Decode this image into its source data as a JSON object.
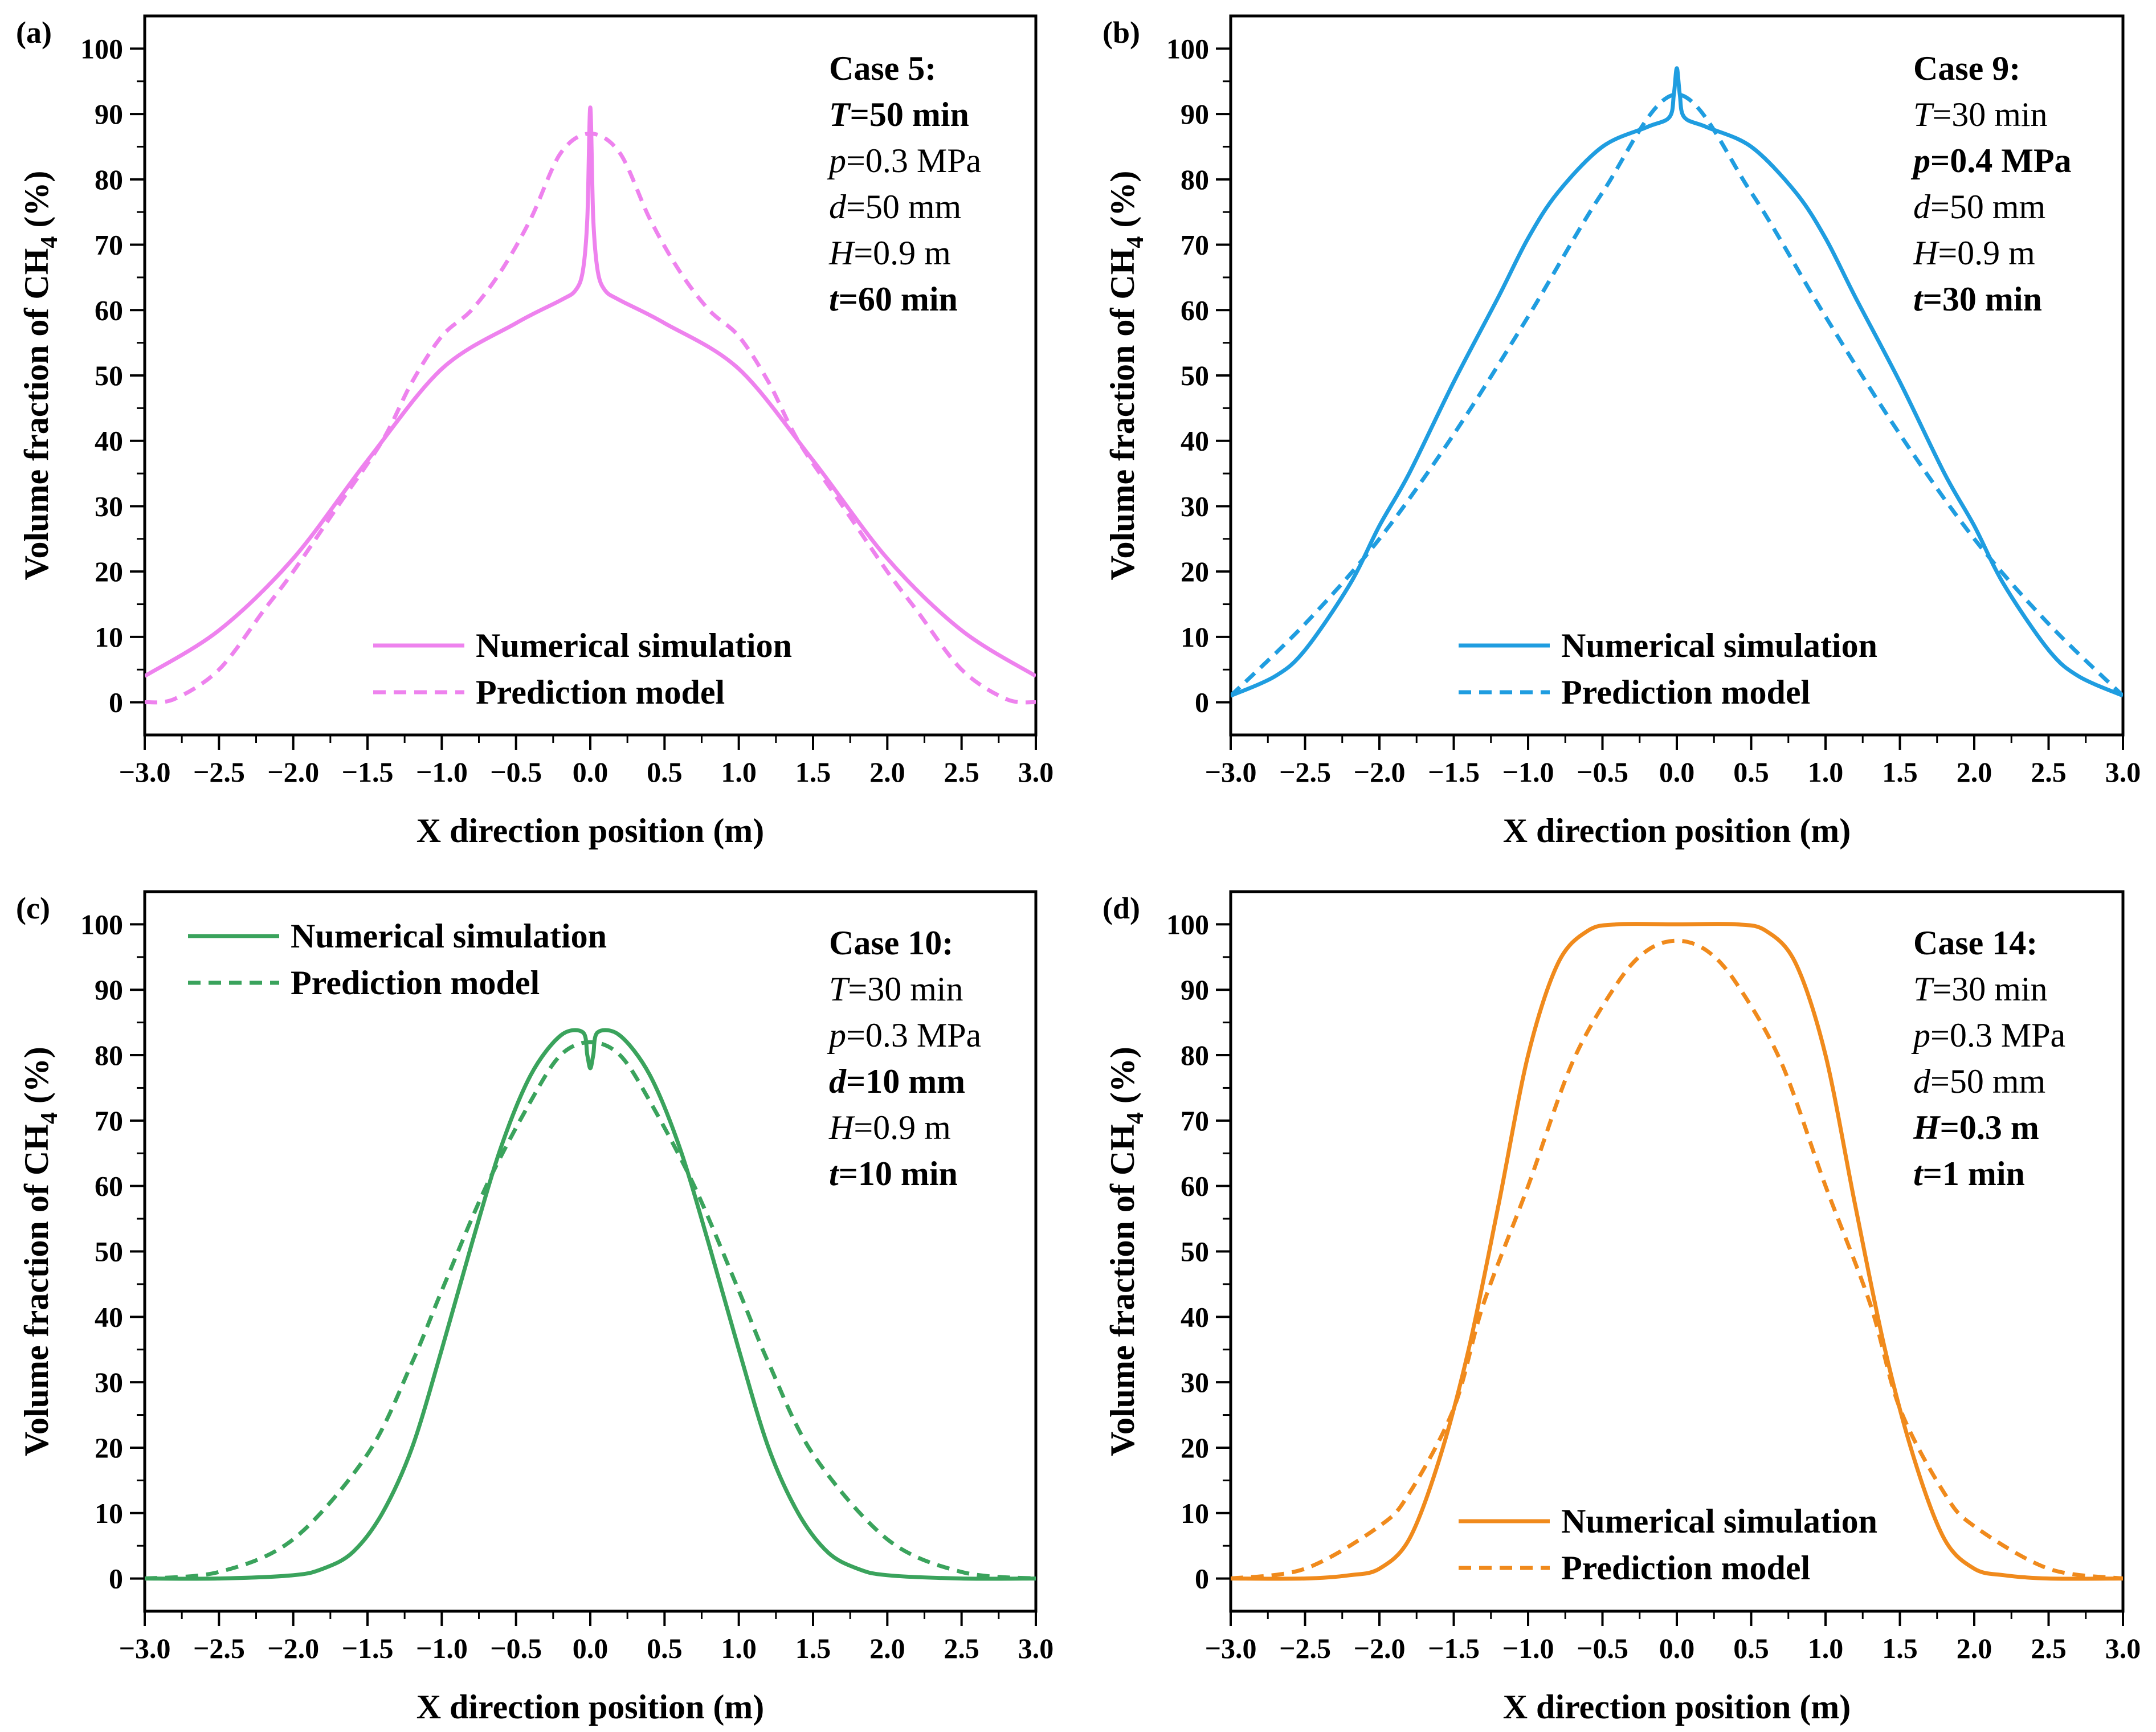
{
  "figure": {
    "x_tick_labels": [
      "−3.0",
      "−2.5",
      "−2.0",
      "−1.5",
      "−1.0",
      "−0.5",
      "0.0",
      "0.5",
      "1.0",
      "1.5",
      "2.0",
      "2.5",
      "3.0"
    ],
    "y_tick_labels": [
      "0",
      "10",
      "20",
      "30",
      "40",
      "50",
      "60",
      "70",
      "80",
      "90",
      "100"
    ]
  },
  "chart_data": [
    {
      "type": "line",
      "panel_label": "(a)",
      "xlabel": "X direction position (m)",
      "ylabel_main": "Volume fraction of CH",
      "ylabel_sub": "4",
      "ylabel_tail": " (%)",
      "xlim": [
        -3.0,
        3.0
      ],
      "ylim": [
        -5,
        105
      ],
      "color": "#ee82ee",
      "legend_position": "bottom-center",
      "annotation": [
        {
          "parts": [
            {
              "t": "Case 5:",
              "b": true
            }
          ]
        },
        {
          "parts": [
            {
              "t": "T",
              "b": true,
              "i": true
            },
            {
              "t": "=50 min",
              "b": true
            }
          ]
        },
        {
          "parts": [
            {
              "t": "p",
              "i": true
            },
            {
              "t": "=0.3 MPa"
            }
          ]
        },
        {
          "parts": [
            {
              "t": "d",
              "i": true
            },
            {
              "t": "=50 mm"
            }
          ]
        },
        {
          "parts": [
            {
              "t": "H",
              "i": true
            },
            {
              "t": "=0.9 m"
            }
          ]
        },
        {
          "parts": [
            {
              "t": "t",
              "b": true,
              "i": true
            },
            {
              "t": "=60 min",
              "b": true
            }
          ]
        }
      ],
      "series": [
        {
          "name": "Numerical simulation",
          "style": "solid",
          "x": [
            -3.0,
            -2.5,
            -2.0,
            -1.5,
            -1.0,
            -0.5,
            -0.2,
            -0.1,
            -0.05,
            -0.02,
            0.0,
            0.02,
            0.05,
            0.1,
            0.2,
            0.5,
            1.0,
            1.5,
            2.0,
            2.5,
            3.0
          ],
          "y": [
            4,
            11,
            22,
            37,
            51,
            58,
            61.5,
            63,
            66,
            74,
            91,
            74,
            66,
            63,
            61.5,
            58,
            51,
            37,
            22,
            11,
            4
          ]
        },
        {
          "name": "Prediction model",
          "style": "dashed",
          "x": [
            -3.0,
            -2.8,
            -2.5,
            -2.2,
            -2.0,
            -1.7,
            -1.4,
            -1.2,
            -1.0,
            -0.8,
            -0.6,
            -0.4,
            -0.2,
            0.0,
            0.2,
            0.4,
            0.6,
            0.8,
            1.0,
            1.2,
            1.4,
            1.7,
            2.0,
            2.2,
            2.5,
            2.8,
            3.0
          ],
          "y": [
            0,
            0.5,
            5,
            14,
            20,
            30,
            40,
            49,
            56,
            60,
            66,
            74,
            84,
            87,
            84,
            74,
            66,
            60,
            56,
            49,
            40,
            30,
            20,
            14,
            5,
            0.5,
            0
          ]
        }
      ]
    },
    {
      "type": "line",
      "panel_label": "(b)",
      "xlabel": "X direction position (m)",
      "ylabel_main": "Volume fraction of CH",
      "ylabel_sub": "4",
      "ylabel_tail": " (%)",
      "xlim": [
        -3.0,
        3.0
      ],
      "ylim": [
        -5,
        105
      ],
      "color": "#1f9de0",
      "legend_position": "bottom-center",
      "annotation": [
        {
          "parts": [
            {
              "t": "Case 9:",
              "b": true
            }
          ]
        },
        {
          "parts": [
            {
              "t": "T",
              "i": true
            },
            {
              "t": "=30 min"
            }
          ]
        },
        {
          "parts": [
            {
              "t": "p",
              "b": true,
              "i": true
            },
            {
              "t": "=0.4 MPa",
              "b": true
            }
          ]
        },
        {
          "parts": [
            {
              "t": "d",
              "i": true
            },
            {
              "t": "=50 mm"
            }
          ]
        },
        {
          "parts": [
            {
              "t": "H",
              "i": true
            },
            {
              "t": "=0.9 m"
            }
          ]
        },
        {
          "parts": [
            {
              "t": "t",
              "b": true,
              "i": true
            },
            {
              "t": "=30 min",
              "b": true
            }
          ]
        }
      ],
      "series": [
        {
          "name": "Numerical simulation",
          "style": "solid",
          "x": [
            -3.0,
            -2.7,
            -2.5,
            -2.2,
            -2.0,
            -1.8,
            -1.5,
            -1.2,
            -1.0,
            -0.8,
            -0.5,
            -0.2,
            -0.05,
            -0.02,
            0.0,
            0.02,
            0.05,
            0.2,
            0.5,
            0.8,
            1.0,
            1.2,
            1.5,
            1.8,
            2.0,
            2.2,
            2.5,
            2.7,
            3.0
          ],
          "y": [
            1,
            4,
            8,
            18,
            27,
            35,
            49,
            62,
            71,
            78,
            85,
            88,
            89.5,
            93,
            97,
            93,
            89.5,
            88,
            85,
            78,
            71,
            62,
            49,
            35,
            27,
            18,
            8,
            4,
            1
          ]
        },
        {
          "name": "Prediction model",
          "style": "dashed",
          "x": [
            -3.0,
            -2.5,
            -2.0,
            -1.5,
            -1.0,
            -0.5,
            0.0,
            0.5,
            1.0,
            1.5,
            2.0,
            2.5,
            3.0
          ],
          "y": [
            1,
            12,
            25,
            41,
            59,
            78,
            93,
            78,
            59,
            41,
            25,
            12,
            1
          ]
        }
      ]
    },
    {
      "type": "line",
      "panel_label": "(c)",
      "xlabel": "X direction position (m)",
      "ylabel_main": "Volume fraction of CH",
      "ylabel_sub": "4",
      "ylabel_tail": " (%)",
      "xlim": [
        -3.0,
        3.0
      ],
      "ylim": [
        -5,
        105
      ],
      "color": "#3aa35c",
      "legend_position": "top-left",
      "annotation": [
        {
          "parts": [
            {
              "t": "Case 10:",
              "b": true
            }
          ]
        },
        {
          "parts": [
            {
              "t": "T",
              "i": true
            },
            {
              "t": "=30 min"
            }
          ]
        },
        {
          "parts": [
            {
              "t": "p",
              "i": true
            },
            {
              "t": "=0.3 MPa"
            }
          ]
        },
        {
          "parts": [
            {
              "t": "d",
              "b": true,
              "i": true
            },
            {
              "t": "=10 mm",
              "b": true
            }
          ]
        },
        {
          "parts": [
            {
              "t": "H",
              "i": true
            },
            {
              "t": "=0.9 m"
            }
          ]
        },
        {
          "parts": [
            {
              "t": "t",
              "b": true,
              "i": true
            },
            {
              "t": "=10 min",
              "b": true
            }
          ]
        }
      ],
      "series": [
        {
          "name": "Numerical simulation",
          "style": "solid",
          "x": [
            -3.0,
            -2.5,
            -2.0,
            -1.8,
            -1.6,
            -1.4,
            -1.2,
            -1.0,
            -0.8,
            -0.6,
            -0.4,
            -0.2,
            -0.05,
            -0.02,
            0.0,
            0.02,
            0.05,
            0.2,
            0.4,
            0.6,
            0.8,
            1.0,
            1.2,
            1.4,
            1.6,
            1.8,
            2.0,
            2.5,
            3.0
          ],
          "y": [
            0,
            0,
            0.5,
            1.5,
            4,
            10,
            20,
            35,
            51,
            66,
            77,
            83,
            83.5,
            80,
            78,
            80,
            83.5,
            83,
            77,
            66,
            51,
            35,
            20,
            10,
            4,
            1.5,
            0.5,
            0,
            0
          ]
        },
        {
          "name": "Prediction model",
          "style": "dashed",
          "x": [
            -3.0,
            -2.5,
            -2.0,
            -1.5,
            -1.2,
            -1.0,
            -0.7,
            -0.4,
            -0.2,
            0.0,
            0.2,
            0.4,
            0.7,
            1.0,
            1.2,
            1.5,
            2.0,
            2.5,
            3.0
          ],
          "y": [
            0,
            1,
            6,
            19,
            33,
            44,
            60,
            73,
            80,
            82,
            80,
            73,
            60,
            44,
            33,
            19,
            6,
            1,
            0
          ]
        }
      ]
    },
    {
      "type": "line",
      "panel_label": "(d)",
      "xlabel": "X direction position (m)",
      "ylabel_main": "Volume fraction of CH",
      "ylabel_sub": "4",
      "ylabel_tail": " (%)",
      "xlim": [
        -3.0,
        3.0
      ],
      "ylim": [
        -5,
        105
      ],
      "color": "#f08a1c",
      "legend_position": "bottom-center",
      "annotation": [
        {
          "parts": [
            {
              "t": "Case 14:",
              "b": true
            }
          ]
        },
        {
          "parts": [
            {
              "t": "T",
              "i": true
            },
            {
              "t": "=30 min"
            }
          ]
        },
        {
          "parts": [
            {
              "t": "p",
              "i": true
            },
            {
              "t": "=0.3 MPa"
            }
          ]
        },
        {
          "parts": [
            {
              "t": "d",
              "i": true
            },
            {
              "t": "=50 mm"
            }
          ]
        },
        {
          "parts": [
            {
              "t": "H",
              "b": true,
              "i": true
            },
            {
              "t": "=0.3 m",
              "b": true
            }
          ]
        },
        {
          "parts": [
            {
              "t": "t",
              "b": true,
              "i": true
            },
            {
              "t": "=1 min",
              "b": true
            }
          ]
        }
      ],
      "series": [
        {
          "name": "Numerical simulation",
          "style": "solid",
          "x": [
            -3.0,
            -2.5,
            -2.2,
            -2.0,
            -1.8,
            -1.6,
            -1.4,
            -1.2,
            -1.0,
            -0.8,
            -0.6,
            -0.4,
            0.0,
            0.4,
            0.6,
            0.8,
            1.0,
            1.2,
            1.4,
            1.6,
            1.8,
            2.0,
            2.2,
            2.5,
            3.0
          ],
          "y": [
            0,
            0,
            0.5,
            1.5,
            6,
            18,
            35,
            57,
            80,
            94,
            99,
            100,
            100,
            100,
            99,
            94,
            80,
            57,
            35,
            18,
            6,
            1.5,
            0.5,
            0,
            0
          ]
        },
        {
          "name": "Prediction model",
          "style": "dashed",
          "x": [
            -3.0,
            -2.5,
            -2.0,
            -1.8,
            -1.5,
            -1.3,
            -1.0,
            -0.7,
            -0.4,
            -0.2,
            0.0,
            0.2,
            0.4,
            0.7,
            1.0,
            1.3,
            1.5,
            1.8,
            2.0,
            2.5,
            3.0
          ],
          "y": [
            0,
            1.5,
            8,
            13,
            26,
            42,
            60,
            79,
            91,
            96,
            97.5,
            96,
            91,
            79,
            60,
            42,
            26,
            13,
            8,
            1.5,
            0
          ]
        }
      ]
    }
  ]
}
